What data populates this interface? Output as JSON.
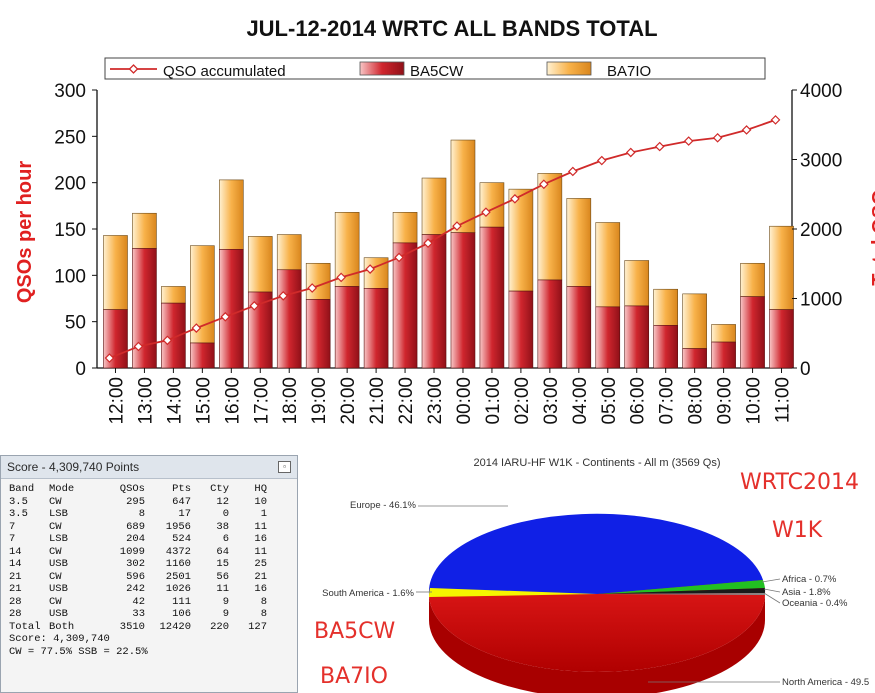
{
  "chart_data": [
    {
      "type": "bar",
      "title": "JUL-12-2014  WRTC   ALL BANDS TOTAL",
      "ylabel": "QSOs per hour",
      "y2label": "Total QSOs",
      "ylim": [
        0,
        300
      ],
      "y2lim": [
        0,
        4000
      ],
      "yticks": [
        "0",
        "50",
        "100",
        "150",
        "200",
        "250",
        "300"
      ],
      "y2ticks": [
        "0",
        "1000",
        "2000",
        "3000",
        "4000"
      ],
      "stacked": true,
      "categories": [
        "12:00",
        "13:00",
        "14:00",
        "15:00",
        "16:00",
        "17:00",
        "18:00",
        "19:00",
        "20:00",
        "21:00",
        "22:00",
        "23:00",
        "00:00",
        "01:00",
        "02:00",
        "03:00",
        "04:00",
        "05:00",
        "06:00",
        "07:00",
        "08:00",
        "09:00",
        "10:00",
        "11:00"
      ],
      "series": [
        {
          "name": "BA5CW",
          "color": "#c82028",
          "values": [
            63,
            129,
            70,
            27,
            128,
            82,
            106,
            74,
            88,
            86,
            135,
            144,
            146,
            152,
            83,
            95,
            88,
            66,
            67,
            46,
            21,
            28,
            77,
            63
          ]
        },
        {
          "name": "BA7IO",
          "color": "#f5a43a",
          "values": [
            80,
            38,
            18,
            105,
            75,
            60,
            38,
            39,
            80,
            33,
            33,
            61,
            100,
            48,
            110,
            115,
            95,
            91,
            49,
            39,
            59,
            19,
            36,
            90
          ]
        },
        {
          "name": "QSO accumulated",
          "type": "line",
          "axis": "y2",
          "color": "#d02a2a",
          "values": [
            143,
            310,
            398,
            574,
            737,
            895,
            1038,
            1151,
            1304,
            1423,
            1591,
            1796,
            2042,
            2242,
            2434,
            2644,
            2828,
            2985,
            3101,
            3186,
            3265,
            3312,
            3425,
            3570
          ]
        }
      ],
      "legend": {
        "position": "top",
        "entries": [
          "QSO accumulated",
          "BA5CW",
          "BA7IO"
        ]
      },
      "grid": false
    },
    {
      "type": "pie",
      "title": "2014 IARU-HF W1K - Continents - All m (3569 Qs)",
      "slices": [
        {
          "label": "Europe - 46.1%",
          "value": 46.1,
          "color": "#1020e6"
        },
        {
          "label": "North America - 49.5",
          "value": 49.5,
          "color": "#f01414"
        },
        {
          "label": "South America - 1.6%",
          "value": 1.6,
          "color": "#f5f500"
        },
        {
          "label": "Africa - 0.7%",
          "value": 0.7,
          "color": "#22c022"
        },
        {
          "label": "Asia - 1.8%",
          "value": 1.8,
          "color": "#1a1a1a"
        },
        {
          "label": "Oceania - 0.4%",
          "value": 0.4,
          "color": "#888888"
        }
      ]
    }
  ],
  "score_window": {
    "title": "Score - 4,309,740 Points",
    "columns": [
      "Band",
      "Mode",
      "QSOs",
      "Pts",
      "Cty",
      "HQ"
    ],
    "rows": [
      [
        "3.5",
        "CW",
        "295",
        "647",
        "12",
        "10"
      ],
      [
        "3.5",
        "LSB",
        "8",
        "17",
        "0",
        "1"
      ],
      [
        "7",
        "CW",
        "689",
        "1956",
        "38",
        "11"
      ],
      [
        "7",
        "LSB",
        "204",
        "524",
        "6",
        "16"
      ],
      [
        "14",
        "CW",
        "1099",
        "4372",
        "64",
        "11"
      ],
      [
        "14",
        "USB",
        "302",
        "1160",
        "15",
        "25"
      ],
      [
        "21",
        "CW",
        "596",
        "2501",
        "56",
        "21"
      ],
      [
        "21",
        "USB",
        "242",
        "1026",
        "11",
        "16"
      ],
      [
        "28",
        "CW",
        "42",
        "111",
        "9",
        "8"
      ],
      [
        "28",
        "USB",
        "33",
        "106",
        "9",
        "8"
      ],
      [
        "Total",
        "Both",
        "3510",
        "12420",
        "220",
        "127"
      ]
    ],
    "score_line": "Score: 4,309,740",
    "mode_line": "CW = 77.5% SSB = 22.5%"
  },
  "overlay_text": {
    "wrtc": "WRTC2014",
    "w1k": "W1K",
    "ba5cw": "BA5CW",
    "ba7io": "BA7IO"
  }
}
